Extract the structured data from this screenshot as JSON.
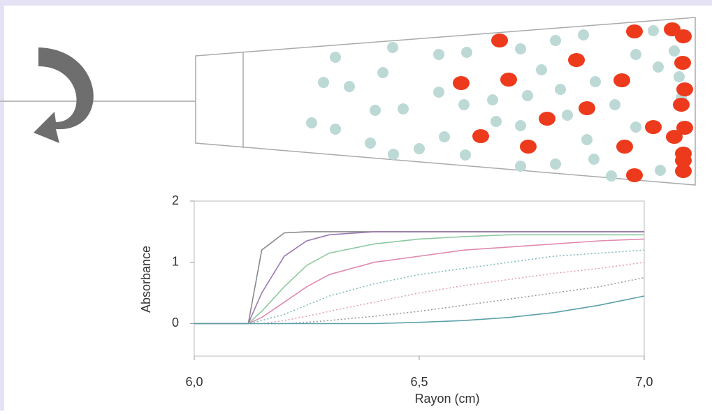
{
  "chart_data": {
    "type": "line",
    "x_label": "Rayon (cm)",
    "y_label": "Absorbance",
    "x": [
      6.0,
      6.1,
      6.12,
      6.15,
      6.2,
      6.25,
      6.3,
      6.4,
      6.5,
      6.6,
      6.7,
      6.8,
      6.9,
      7.0
    ],
    "series": [
      {
        "color": "#8a8a8a",
        "style": "solid",
        "values": [
          0,
          0,
          0,
          1.2,
          1.48,
          1.5,
          1.5,
          1.5,
          1.5,
          1.5,
          1.5,
          1.5,
          1.5,
          1.5
        ]
      },
      {
        "color": "#9a78b0",
        "style": "solid",
        "values": [
          0,
          0,
          0,
          0.5,
          1.1,
          1.35,
          1.45,
          1.5,
          1.5,
          1.5,
          1.5,
          1.5,
          1.5,
          1.5
        ]
      },
      {
        "color": "#8cc9a0",
        "style": "solid",
        "values": [
          0,
          0,
          0,
          0.2,
          0.6,
          0.95,
          1.15,
          1.3,
          1.38,
          1.42,
          1.45,
          1.45,
          1.45,
          1.45
        ]
      },
      {
        "color": "#e08ab0",
        "style": "solid",
        "values": [
          0,
          0,
          0,
          0.1,
          0.35,
          0.6,
          0.8,
          1.0,
          1.1,
          1.2,
          1.25,
          1.3,
          1.35,
          1.38
        ]
      },
      {
        "color": "#7fb8c0",
        "style": "dotted",
        "values": [
          0,
          0,
          0,
          0.05,
          0.15,
          0.3,
          0.45,
          0.65,
          0.8,
          0.9,
          1.0,
          1.1,
          1.15,
          1.2
        ]
      },
      {
        "color": "#e0a0b8",
        "style": "dotted",
        "values": [
          0,
          0,
          0,
          0,
          0.05,
          0.12,
          0.2,
          0.35,
          0.5,
          0.62,
          0.72,
          0.82,
          0.9,
          1.0
        ]
      },
      {
        "color": "#9a9a9a",
        "style": "dotted",
        "values": [
          0,
          0,
          0,
          0,
          0,
          0.02,
          0.05,
          0.12,
          0.2,
          0.3,
          0.4,
          0.5,
          0.6,
          0.75
        ]
      },
      {
        "color": "#5aa0a8",
        "style": "solid",
        "values": [
          0,
          0,
          0,
          0,
          0,
          0,
          0,
          0,
          0.02,
          0.05,
          0.1,
          0.18,
          0.3,
          0.45
        ]
      }
    ],
    "xlim": [
      6.0,
      7.0
    ],
    "xticks": [
      {
        "value": 6.0,
        "label": "6,0"
      },
      {
        "value": 6.5,
        "label": "6,5"
      },
      {
        "value": 7.0,
        "label": "7,0"
      }
    ],
    "ylim": [
      -0.53,
      2.0
    ],
    "yticks": [
      0,
      1,
      2
    ]
  }
}
